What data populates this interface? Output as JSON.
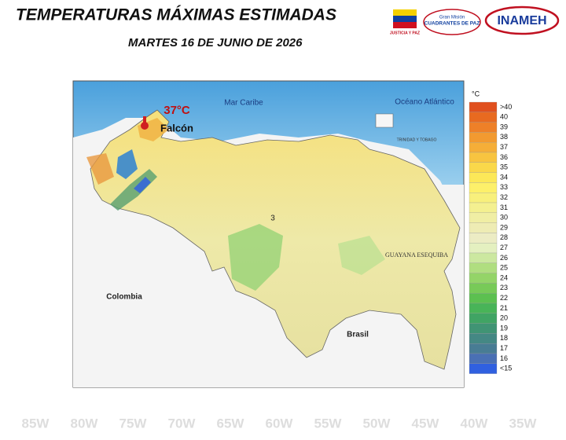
{
  "header": {
    "title": "TEMPERATURAS MÁXIMAS ESTIMADAS",
    "subtitle": "MARTES 16 DE JUNIO DE 2026",
    "logos": [
      "JUSTICIA Y PAZ",
      "Gran Misión",
      "CUADRANTES DE PAZ",
      "INAMEH"
    ]
  },
  "map": {
    "labels": {
      "sea": "Mar Caribe",
      "ocean": "Océano Atlántico",
      "colombia": "Colombia",
      "brasil": "Brasil",
      "guayana": "GUAYANA ESEQUIBA",
      "region": "3",
      "trinidad": "TRINIDAD Y TOBAGO"
    },
    "annotation": {
      "value": "37°C",
      "place": "Falcón"
    }
  },
  "legend": {
    "unit": "°C",
    "items": [
      {
        "label": ">40",
        "color": "#e0501e"
      },
      {
        "label": "40",
        "color": "#e86a20"
      },
      {
        "label": "39",
        "color": "#ee8028"
      },
      {
        "label": "38",
        "color": "#f29a30"
      },
      {
        "label": "37",
        "color": "#f5ae38"
      },
      {
        "label": "36",
        "color": "#f8c440"
      },
      {
        "label": "35",
        "color": "#fad84a"
      },
      {
        "label": "34",
        "color": "#fce858"
      },
      {
        "label": "33",
        "color": "#fdf06a"
      },
      {
        "label": "32",
        "color": "#f8f07c"
      },
      {
        "label": "31",
        "color": "#f4f090"
      },
      {
        "label": "30",
        "color": "#f0eea4"
      },
      {
        "label": "29",
        "color": "#eeecb4"
      },
      {
        "label": "28",
        "color": "#ececc4"
      },
      {
        "label": "27",
        "color": "#e4f0c0"
      },
      {
        "label": "26",
        "color": "#cce8a0"
      },
      {
        "label": "25",
        "color": "#b0de80"
      },
      {
        "label": "24",
        "color": "#94d468"
      },
      {
        "label": "23",
        "color": "#78ca58"
      },
      {
        "label": "22",
        "color": "#5cc050"
      },
      {
        "label": "21",
        "color": "#48b458"
      },
      {
        "label": "20",
        "color": "#40a464"
      },
      {
        "label": "19",
        "color": "#409474"
      },
      {
        "label": "18",
        "color": "#448884"
      },
      {
        "label": "17",
        "color": "#487c94"
      },
      {
        "label": "16",
        "color": "#4a70b4"
      },
      {
        "label": "<15",
        "color": "#3060e0"
      }
    ]
  },
  "background_labels": [
    "85W",
    "80W",
    "75W",
    "70W",
    "65W",
    "60W",
    "55W",
    "50W",
    "45W",
    "40W",
    "35W"
  ]
}
